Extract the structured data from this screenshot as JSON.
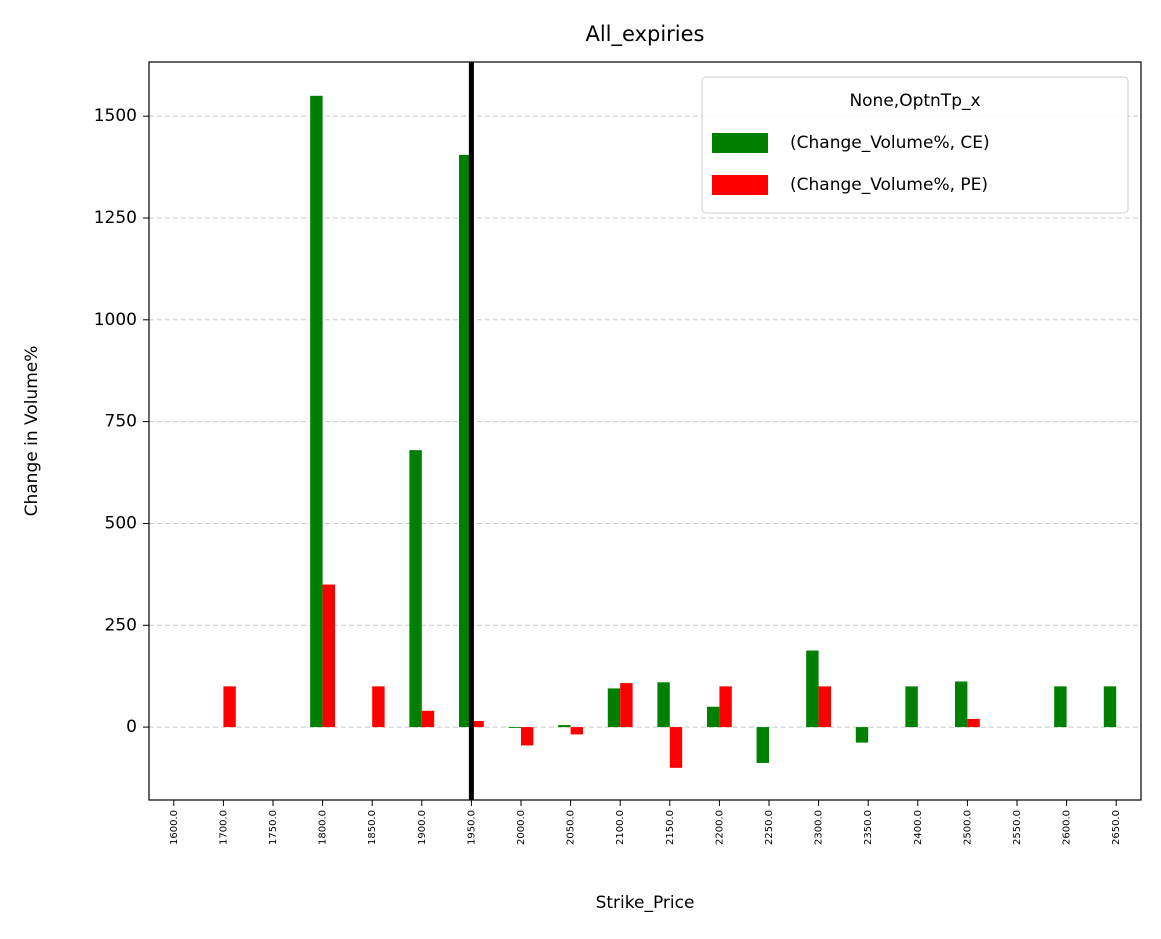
{
  "chart_data": {
    "type": "bar",
    "title": "All_expiries",
    "x_label": "Strike_Price",
    "y_label": "Change in Volume%",
    "categories": [
      "1600.0",
      "1700.0",
      "1750.0",
      "1800.0",
      "1850.0",
      "1900.0",
      "1950.0",
      "2000.0",
      "2050.0",
      "2100.0",
      "2150.0",
      "2200.0",
      "2250.0",
      "2300.0",
      "2350.0",
      "2400.0",
      "2500.0",
      "2550.0",
      "2600.0",
      "2650.0"
    ],
    "series": [
      {
        "name": "(Change_Volume%, CE)",
        "color": "#008000",
        "values": [
          null,
          null,
          null,
          1550,
          null,
          680,
          1405,
          -2,
          5,
          95,
          110,
          50,
          -88,
          188,
          -38,
          100,
          112,
          null,
          100,
          100
        ]
      },
      {
        "name": "(Change_Volume%, PE)",
        "color": "#ff0000",
        "values": [
          null,
          100,
          null,
          350,
          100,
          40,
          15,
          -45,
          -18,
          108,
          -100,
          100,
          null,
          100,
          null,
          null,
          20,
          null,
          null,
          null
        ]
      }
    ],
    "legend_title": "None,OptnTp_x",
    "legend": "upper right",
    "ylim": [
      -179,
      1633
    ],
    "yticks": [
      0,
      250,
      500,
      750,
      1000,
      1250,
      1500
    ],
    "grid": true,
    "vline": "1950.0"
  }
}
